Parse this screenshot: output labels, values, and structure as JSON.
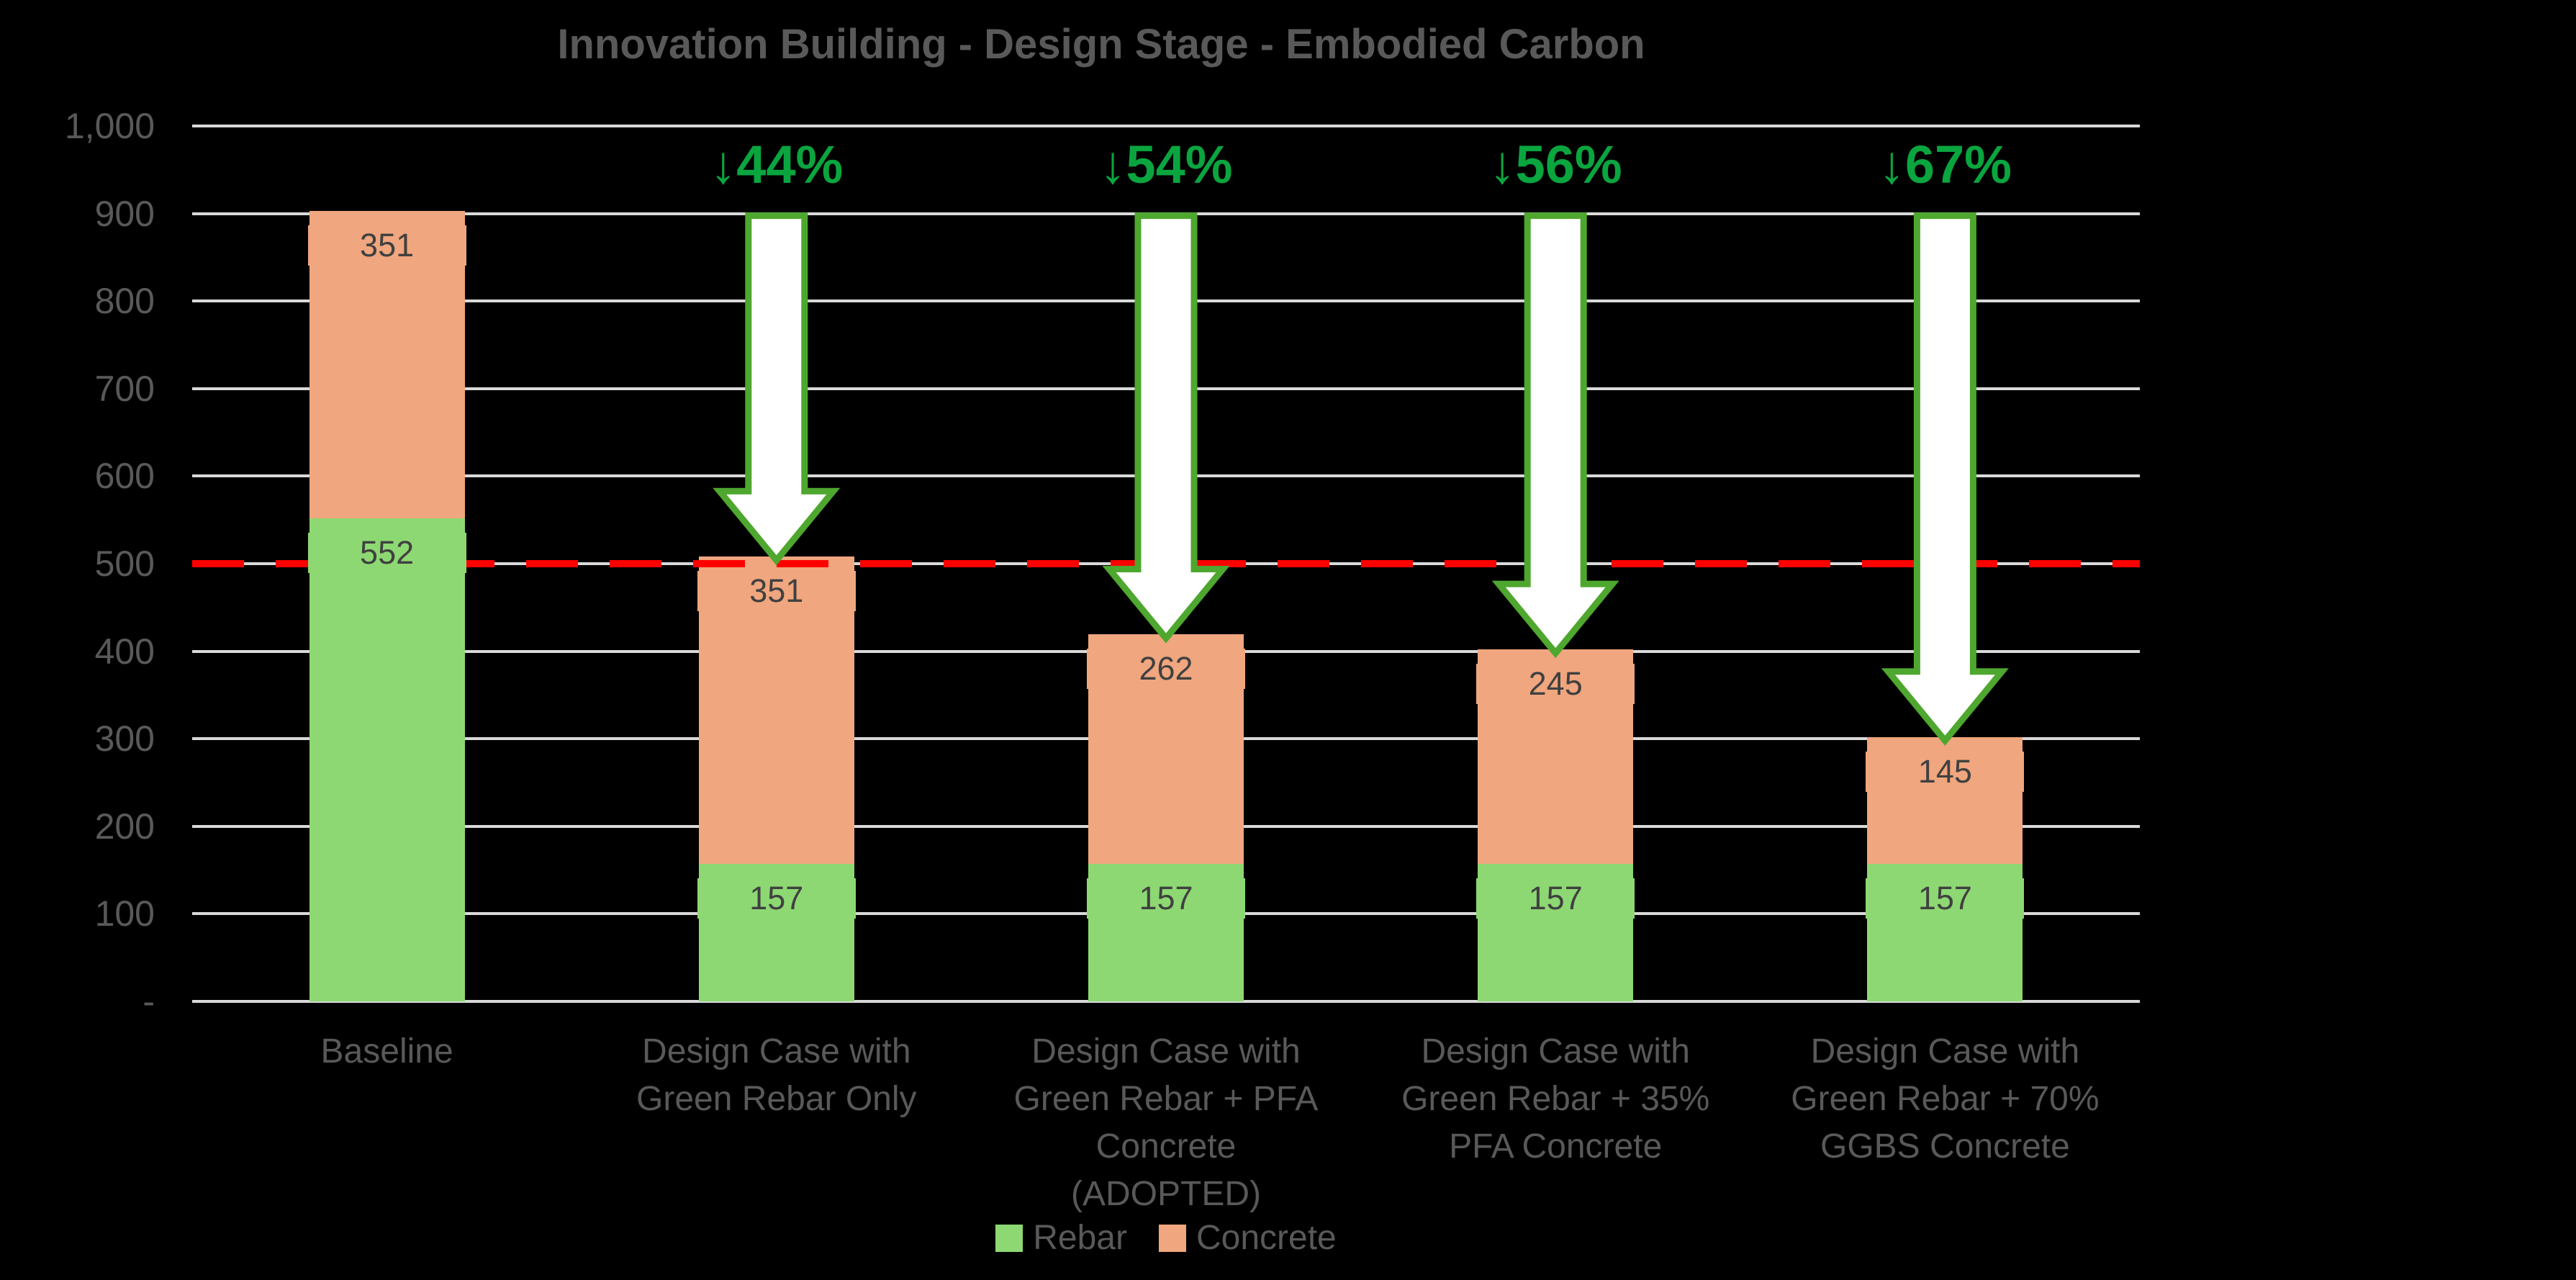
{
  "chart_data": {
    "type": "bar",
    "stacked": true,
    "title": "Innovation Building - Design Stage - Embodied Carbon",
    "categories": [
      "Baseline",
      "Design Case with Green Rebar Only",
      "Design Case with Green Rebar + PFA Concrete (ADOPTED)",
      "Design Case with Green Rebar + 35% PFA Concrete",
      "Design Case with Green Rebar + 70% GGBS Concrete"
    ],
    "series": [
      {
        "name": "Rebar",
        "color": "#8DD873",
        "values": [
          552,
          157,
          157,
          157,
          157
        ]
      },
      {
        "name": "Concrete",
        "color": "#F0A67E",
        "values": [
          351,
          351,
          262,
          245,
          145
        ]
      }
    ],
    "totals": [
      903,
      508,
      419,
      402,
      302
    ],
    "reduction_arrows": [
      {
        "category_index": 1,
        "label": "↓44%"
      },
      {
        "category_index": 2,
        "label": "↓54%"
      },
      {
        "category_index": 3,
        "label": "↓56%"
      },
      {
        "category_index": 4,
        "label": "↓67%"
      }
    ],
    "reference_line": {
      "value": 500,
      "color": "#FE0000",
      "style": "dashed"
    },
    "y_axis": {
      "min": 0,
      "max": 1000,
      "step": 100,
      "tick_labels": [
        "1,000",
        "900",
        "800",
        "700",
        "600",
        "500",
        "400",
        "300",
        "200",
        "100",
        "-"
      ]
    },
    "grid": true,
    "legend_position": "bottom",
    "colors": {
      "background": "#000000",
      "gridline": "#D9D9D9",
      "axis_text": "#595959",
      "data_label_text": "#404040",
      "arrow_fill": "#FFFFFF",
      "arrow_outline": "#4EA72E",
      "percent_text": "#0AA53F"
    }
  }
}
